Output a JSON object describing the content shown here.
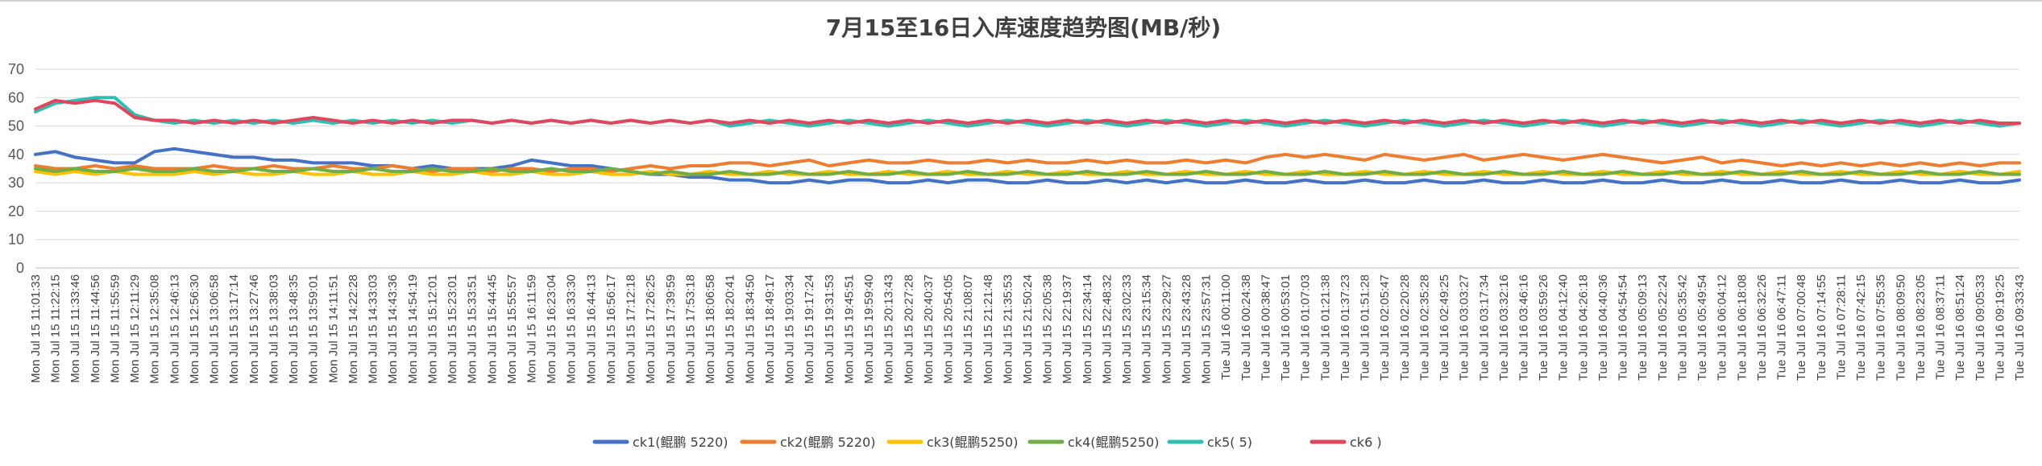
{
  "chart_data": {
    "type": "line",
    "title": "7月15至16日入库速度趋势图(MB/秒)",
    "xlabel": "",
    "ylabel": "",
    "ylim": [
      0,
      70
    ],
    "yticks": [
      0,
      10,
      20,
      30,
      40,
      50,
      60,
      70
    ],
    "grid": "horizontal",
    "legend_position": "bottom",
    "categories": [
      "Mon Jul 15 11:01:33",
      "Mon Jul 15 11:22:15",
      "Mon Jul 15 11:33:46",
      "Mon Jul 15 11:44:56",
      "Mon Jul 15 11:55:59",
      "Mon Jul 15 12:11:29",
      "Mon Jul 15 12:35:08",
      "Mon Jul 15 12:46:13",
      "Mon Jul 15 12:56:30",
      "Mon Jul 15 13:06:58",
      "Mon Jul 15 13:17:14",
      "Mon Jul 15 13:27:46",
      "Mon Jul 15 13:38:03",
      "Mon Jul 15 13:48:35",
      "Mon Jul 15 13:59:01",
      "Mon Jul 15 14:11:51",
      "Mon Jul 15 14:22:28",
      "Mon Jul 15 14:33:03",
      "Mon Jul 15 14:43:36",
      "Mon Jul 15 14:54:19",
      "Mon Jul 15 15:12:01",
      "Mon Jul 15 15:23:01",
      "Mon Jul 15 15:33:51",
      "Mon Jul 15 15:44:45",
      "Mon Jul 15 15:55:57",
      "Mon Jul 15 16:11:59",
      "Mon Jul 15 16:23:04",
      "Mon Jul 15 16:33:30",
      "Mon Jul 15 16:44:13",
      "Mon Jul 15 16:56:17",
      "Mon Jul 15 17:12:18",
      "Mon Jul 15 17:26:25",
      "Mon Jul 15 17:39:59",
      "Mon Jul 15 17:53:18",
      "Mon Jul 15 18:06:58",
      "Mon Jul 15 18:20:41",
      "Mon Jul 15 18:34:50",
      "Mon Jul 15 18:49:17",
      "Mon Jul 15 19:03:34",
      "Mon Jul 15 19:17:24",
      "Mon Jul 15 19:31:53",
      "Mon Jul 15 19:45:51",
      "Mon Jul 15 19:59:40",
      "Mon Jul 15 20:13:43",
      "Mon Jul 15 20:27:28",
      "Mon Jul 15 20:40:37",
      "Mon Jul 15 20:54:05",
      "Mon Jul 15 21:08:07",
      "Mon Jul 15 21:21:48",
      "Mon Jul 15 21:35:53",
      "Mon Jul 15 21:50:24",
      "Mon Jul 15 22:05:38",
      "Mon Jul 15 22:19:37",
      "Mon Jul 15 22:34:14",
      "Mon Jul 15 22:48:32",
      "Mon Jul 15 23:02:33",
      "Mon Jul 15 23:15:34",
      "Mon Jul 15 23:29:27",
      "Mon Jul 15 23:43:28",
      "Mon Jul 15 23:57:31",
      "Tue Jul 16 00:11:00",
      "Tue Jul 16 00:24:38",
      "Tue Jul 16 00:38:47",
      "Tue Jul 16 00:53:01",
      "Tue Jul 16 01:07:03",
      "Tue Jul 16 01:21:38",
      "Tue Jul 16 01:37:23",
      "Tue Jul 16 01:51:28",
      "Tue Jul 16 02:05:47",
      "Tue Jul 16 02:20:28",
      "Tue Jul 16 02:35:28",
      "Tue Jul 16 02:49:25",
      "Tue Jul 16 03:03:27",
      "Tue Jul 16 03:17:34",
      "Tue Jul 16 03:32:16",
      "Tue Jul 16 03:46:16",
      "Tue Jul 16 03:59:26",
      "Tue Jul 16 04:12:40",
      "Tue Jul 16 04:26:18",
      "Tue Jul 16 04:40:36",
      "Tue Jul 16 04:54:54",
      "Tue Jul 16 05:09:13",
      "Tue Jul 16 05:22:24",
      "Tue Jul 16 05:35:42",
      "Tue Jul 16 05:49:54",
      "Tue Jul 16 06:04:12",
      "Tue Jul 16 06:18:08",
      "Tue Jul 16 06:32:26",
      "Tue Jul 16 06:47:11",
      "Tue Jul 16 07:00:48",
      "Tue Jul 16 07:14:55",
      "Tue Jul 16 07:28:11",
      "Tue Jul 16 07:42:15",
      "Tue Jul 16 07:55:35",
      "Tue Jul 16 08:09:50",
      "Tue Jul 16 08:23:05",
      "Tue Jul 16 08:37:11",
      "Tue Jul 16 08:51:24",
      "Tue Jul 16 09:05:33",
      "Tue Jul 16 09:19:25",
      "Tue Jul 16 09:33:43"
    ],
    "series": [
      {
        "name": "ck1(鲲鹏 5220)",
        "color": "#4472C4",
        "values": [
          40,
          41,
          39,
          38,
          37,
          37,
          41,
          42,
          41,
          40,
          39,
          39,
          38,
          38,
          37,
          37,
          37,
          36,
          36,
          35,
          36,
          35,
          35,
          35,
          36,
          38,
          37,
          36,
          36,
          35,
          34,
          33,
          33,
          32,
          32,
          31,
          31,
          30,
          30,
          31,
          30,
          31,
          31,
          30,
          30,
          31,
          30,
          31,
          31,
          30,
          30,
          31,
          30,
          30,
          31,
          30,
          31,
          30,
          31,
          30,
          30,
          31,
          30,
          30,
          31,
          30,
          30,
          31,
          30,
          30,
          31,
          30,
          30,
          31,
          30,
          30,
          31,
          30,
          30,
          31,
          30,
          30,
          31,
          30,
          30,
          31,
          30,
          30,
          31,
          30,
          30,
          31,
          30,
          30,
          31,
          30,
          30,
          31,
          30,
          30,
          31
        ]
      },
      {
        "name": "ck2(鲲鹏 5220)",
        "color": "#ED7D31",
        "values": [
          36,
          35,
          35,
          36,
          35,
          36,
          35,
          35,
          35,
          36,
          35,
          35,
          36,
          35,
          35,
          36,
          35,
          35,
          36,
          35,
          34,
          35,
          35,
          34,
          35,
          35,
          34,
          35,
          35,
          34,
          35,
          36,
          35,
          36,
          36,
          37,
          37,
          36,
          37,
          38,
          36,
          37,
          38,
          37,
          37,
          38,
          37,
          37,
          38,
          37,
          38,
          37,
          37,
          38,
          37,
          38,
          37,
          37,
          38,
          37,
          38,
          37,
          39,
          40,
          39,
          40,
          39,
          38,
          40,
          39,
          38,
          39,
          40,
          38,
          39,
          40,
          39,
          38,
          39,
          40,
          39,
          38,
          37,
          38,
          39,
          37,
          38,
          37,
          36,
          37,
          36,
          37,
          36,
          37,
          36,
          37,
          36,
          37,
          36,
          37,
          37
        ]
      },
      {
        "name": "ck3(鲲鹏5250)",
        "color": "#FFC000",
        "values": [
          34,
          33,
          34,
          33,
          34,
          33,
          33,
          33,
          34,
          33,
          34,
          33,
          33,
          34,
          33,
          33,
          34,
          33,
          33,
          34,
          33,
          33,
          34,
          33,
          33,
          34,
          33,
          33,
          34,
          33,
          33,
          34,
          33,
          33,
          34,
          33,
          33,
          34,
          33,
          33,
          34,
          33,
          33,
          34,
          33,
          33,
          34,
          33,
          33,
          34,
          33,
          33,
          34,
          33,
          33,
          34,
          33,
          33,
          34,
          33,
          33,
          34,
          33,
          33,
          34,
          33,
          33,
          34,
          33,
          33,
          34,
          33,
          33,
          34,
          33,
          33,
          34,
          33,
          33,
          34,
          33,
          33,
          34,
          33,
          33,
          34,
          33,
          33,
          34,
          33,
          33,
          34,
          33,
          33,
          34,
          33,
          33,
          34,
          33,
          33,
          34
        ]
      },
      {
        "name": "ck4(鲲鹏5250)",
        "color": "#70AD47",
        "values": [
          35,
          34,
          35,
          34,
          34,
          35,
          34,
          34,
          35,
          34,
          34,
          35,
          34,
          34,
          35,
          34,
          34,
          35,
          34,
          34,
          35,
          34,
          34,
          35,
          34,
          34,
          35,
          34,
          34,
          35,
          34,
          33,
          34,
          33,
          33,
          34,
          33,
          33,
          34,
          33,
          33,
          34,
          33,
          33,
          34,
          33,
          33,
          34,
          33,
          33,
          34,
          33,
          33,
          34,
          33,
          33,
          34,
          33,
          33,
          34,
          33,
          33,
          34,
          33,
          33,
          34,
          33,
          33,
          34,
          33,
          33,
          34,
          33,
          33,
          34,
          33,
          33,
          34,
          33,
          33,
          34,
          33,
          33,
          34,
          33,
          33,
          34,
          33,
          33,
          34,
          33,
          33,
          34,
          33,
          33,
          34,
          33,
          33,
          34,
          33,
          33
        ]
      },
      {
        "name": "ck5(                5)",
        "color": "#2EBFB0",
        "values": [
          55,
          58,
          59,
          60,
          60,
          54,
          52,
          51,
          52,
          51,
          52,
          51,
          52,
          51,
          52,
          51,
          52,
          51,
          52,
          51,
          52,
          51,
          52,
          51,
          52,
          51,
          52,
          51,
          52,
          51,
          52,
          51,
          52,
          51,
          52,
          50,
          51,
          52,
          51,
          50,
          51,
          52,
          51,
          50,
          51,
          52,
          51,
          50,
          51,
          52,
          51,
          50,
          51,
          52,
          51,
          50,
          51,
          52,
          51,
          50,
          51,
          52,
          51,
          50,
          51,
          52,
          51,
          50,
          51,
          52,
          51,
          50,
          51,
          52,
          51,
          50,
          51,
          52,
          51,
          50,
          51,
          52,
          51,
          50,
          51,
          52,
          51,
          50,
          51,
          52,
          51,
          50,
          51,
          52,
          51,
          50,
          51,
          52,
          51,
          50,
          51
        ]
      },
      {
        "name": "ck6                    )",
        "color": "#E0475F",
        "values": [
          56,
          59,
          58,
          59,
          58,
          53,
          52,
          52,
          51,
          52,
          51,
          52,
          51,
          52,
          53,
          52,
          51,
          52,
          51,
          52,
          51,
          52,
          52,
          51,
          52,
          51,
          52,
          51,
          52,
          51,
          52,
          51,
          52,
          51,
          52,
          51,
          52,
          51,
          52,
          51,
          52,
          51,
          52,
          51,
          52,
          51,
          52,
          51,
          52,
          51,
          52,
          51,
          52,
          51,
          52,
          51,
          52,
          51,
          52,
          51,
          52,
          51,
          52,
          51,
          52,
          51,
          52,
          51,
          52,
          51,
          52,
          51,
          52,
          51,
          52,
          51,
          52,
          51,
          52,
          51,
          52,
          51,
          52,
          51,
          52,
          51,
          52,
          51,
          52,
          51,
          52,
          51,
          52,
          51,
          52,
          51,
          52,
          51,
          52,
          51,
          51
        ]
      }
    ]
  }
}
